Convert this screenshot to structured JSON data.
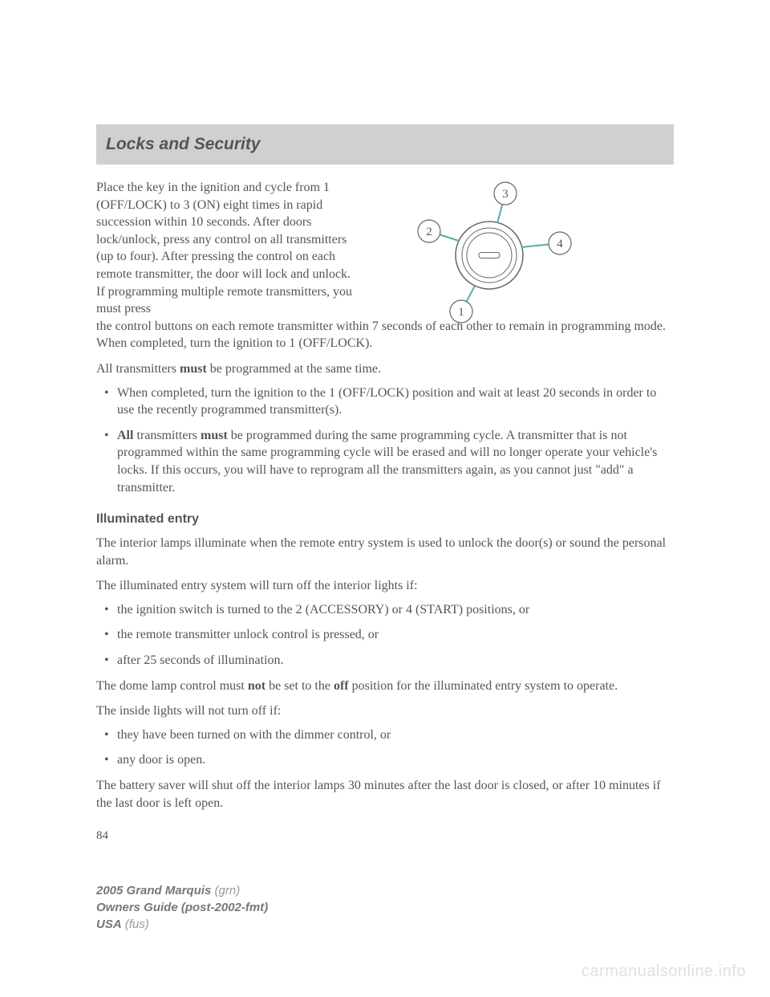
{
  "header": {
    "title": "Locks and Security"
  },
  "intro": {
    "narrow": "Place the key in the ignition and cycle from 1 (OFF/LOCK) to 3 (ON) eight times in rapid succession within 10 seconds. After doors lock/unlock, press any control on all transmitters (up to four). After pressing the control on each remote transmitter, the door will lock and unlock. If programming multiple remote transmitters, you must press",
    "continuation": "the control buttons on each remote transmitter within 7 seconds of each other to remain in programming mode. When completed, turn the ignition to 1 (OFF/LOCK)."
  },
  "diagram": {
    "labels": {
      "n1": "1",
      "n2": "2",
      "n3": "3",
      "n4": "4"
    },
    "line_color": "#5aaaa8",
    "node_stroke": "#666",
    "node_fill": "#ffffff",
    "center_stroke": "#666"
  },
  "para_all_must": "All transmitters <b>must</b> be programmed at the same time.",
  "bullets1": [
    "When completed, turn the ignition to the 1 (OFF/LOCK) position and wait at least 20 seconds in order to use the recently programmed transmitter(s).",
    "<b>All</b> transmitters <b>must</b> be programmed during the same programming cycle. A transmitter that is not programmed within the same programming cycle will be erased and will no longer operate your vehicle's locks. If this occurs, you will have to reprogram all the transmitters again, as you cannot just \"add\" a transmitter."
  ],
  "section2": {
    "title": "Illuminated entry",
    "p1": "The interior lamps illuminate when the remote entry system is used to unlock the door(s) or sound the personal alarm.",
    "p2": "The illuminated entry system will turn off the interior lights if:",
    "bullets": [
      "the ignition switch is turned to the 2 (ACCESSORY) or 4 (START) positions, or",
      "the remote transmitter unlock control is pressed, or",
      "after 25 seconds of illumination."
    ],
    "p3": "The dome lamp control must <b>not</b> be set to the <b>off</b> position for the illuminated entry system to operate.",
    "p4": "The inside lights will not turn off if:",
    "bullets2": [
      "they have been turned on with the dimmer control, or",
      "any door is open."
    ],
    "p5": "The battery saver will shut off the interior lamps 30 minutes after the last door is closed, or after 10 minutes if the last door is left open."
  },
  "page_number": "84",
  "footer": {
    "line1_bold": "2005 Grand Marquis",
    "line1_rest": " (grn)",
    "line2_bold": "Owners Guide (post-2002-fmt)",
    "line3_bold": "USA",
    "line3_rest": " (fus)"
  },
  "watermark": "carmanualsonline.info"
}
